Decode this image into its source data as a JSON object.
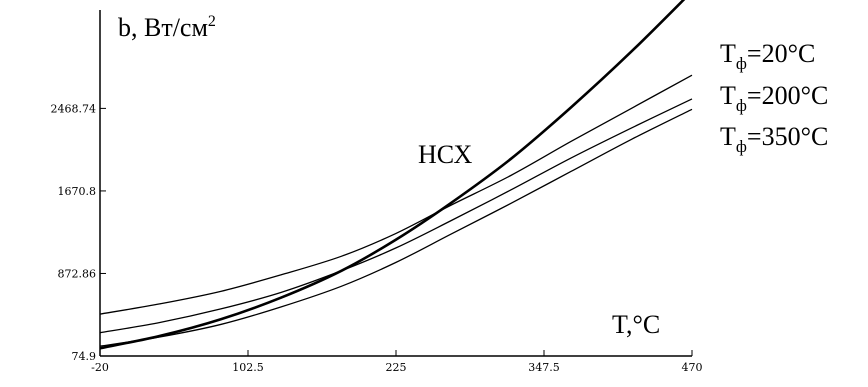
{
  "chart_data": {
    "type": "line",
    "title": "",
    "ylabel_main": "b, Вт/см",
    "ylabel_sup": "2",
    "xlabel": "T,°C",
    "xlim": [
      -20,
      470
    ],
    "ylim": [
      74.9,
      3420
    ],
    "x_ticks": [
      "-20",
      "102.5",
      "225",
      "347.5",
      "470"
    ],
    "y_ticks": [
      "74.9",
      "872.86",
      "1670.8",
      "2468.74"
    ],
    "x_tick_values": [
      -20,
      102.5,
      225,
      347.5,
      470
    ],
    "y_tick_values": [
      74.9,
      872.86,
      1670.8,
      2468.74
    ],
    "annotations": {
      "hcx": "НСХ",
      "series_labels": [
        {
          "main": "T",
          "sub": "ф",
          "rest": "=20°C"
        },
        {
          "main": "T",
          "sub": "ф",
          "rest": "=200°C"
        },
        {
          "main": "T",
          "sub": "ф",
          "rest": "=350°C"
        }
      ]
    },
    "x": [
      -20,
      30,
      80,
      130,
      180,
      225,
      270,
      320,
      370,
      420,
      470
    ],
    "series": [
      {
        "name": "НСХ",
        "bold": true,
        "values": [
          150,
          270,
          430,
          640,
          900,
          1200,
          1550,
          1980,
          2480,
          3020,
          3600
        ]
      },
      {
        "name": "T_ф=20°C",
        "bold": false,
        "values": [
          480,
          580,
          700,
          860,
          1040,
          1260,
          1530,
          1820,
          2150,
          2470,
          2790
        ]
      },
      {
        "name": "T_ф=200°C",
        "bold": false,
        "values": [
          300,
          400,
          530,
          690,
          900,
          1120,
          1380,
          1680,
          1990,
          2280,
          2560
        ]
      },
      {
        "name": "T_ф=350°C",
        "bold": false,
        "values": [
          170,
          260,
          380,
          550,
          750,
          980,
          1250,
          1550,
          1860,
          2170,
          2460
        ]
      }
    ]
  }
}
